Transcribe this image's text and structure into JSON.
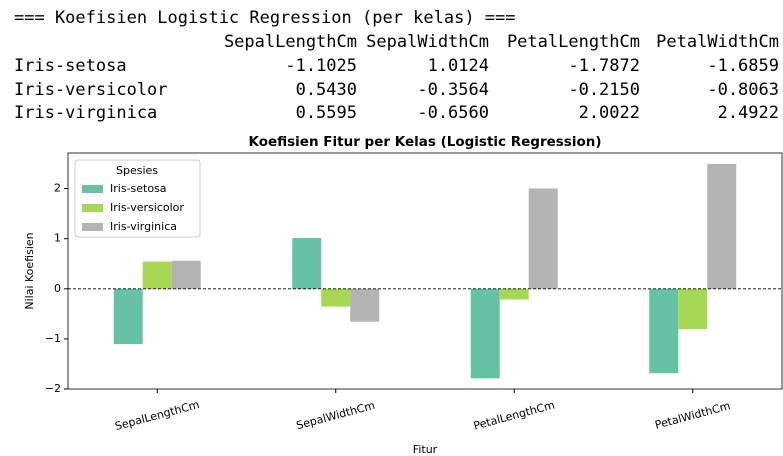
{
  "output": {
    "title": "=== Koefisien Logistic Regression (per kelas) ===",
    "columns": [
      "SepalLengthCm",
      "SepalWidthCm",
      "PetalLengthCm",
      "PetalWidthCm"
    ],
    "rows": [
      {
        "label": "Iris-setosa",
        "cells": [
          "-1.1025",
          "1.0124",
          "-1.7872",
          "-1.6859"
        ]
      },
      {
        "label": "Iris-versicolor",
        "cells": [
          "0.5430",
          "-0.3564",
          "-0.2150",
          "-0.8063"
        ]
      },
      {
        "label": "Iris-virginica",
        "cells": [
          "0.5595",
          "-0.6560",
          "2.0022",
          "2.4922"
        ]
      }
    ]
  },
  "chart_data": {
    "type": "bar",
    "title": "Koefisien Fitur per Kelas (Logistic Regression)",
    "xlabel": "Fitur",
    "ylabel": "Nilai Koefisien",
    "categories": [
      "SepalLengthCm",
      "SepalWidthCm",
      "PetalLengthCm",
      "PetalWidthCm"
    ],
    "series": [
      {
        "name": "Iris-setosa",
        "color": "#66c2a5",
        "values": [
          -1.1025,
          1.0124,
          -1.7872,
          -1.6859
        ]
      },
      {
        "name": "Iris-versicolor",
        "color": "#a6d854",
        "values": [
          0.543,
          -0.3564,
          -0.215,
          -0.8063
        ]
      },
      {
        "name": "Iris-virginica",
        "color": "#b3b3b3",
        "values": [
          0.5595,
          -0.656,
          2.0022,
          2.4922
        ]
      }
    ],
    "legend_title": "Spesies",
    "legend": "upper left",
    "ylim": [
      -2.0,
      2.71
    ],
    "yticks": [
      {
        "value": -2,
        "label": "−2"
      },
      {
        "value": -1,
        "label": "−1"
      },
      0,
      1,
      2
    ],
    "grid": false
  }
}
